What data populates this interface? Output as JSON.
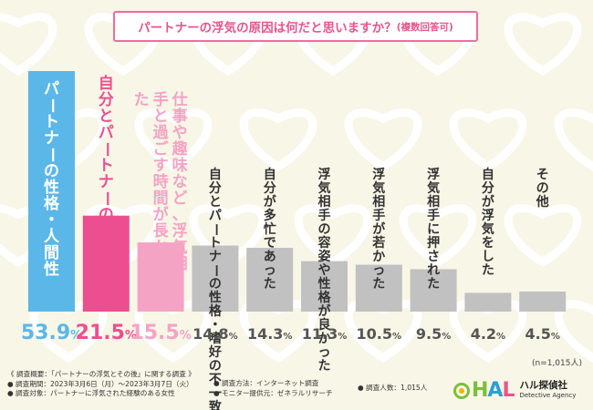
{
  "title": {
    "main": "パートナーの浮気の原因は何だと思いますか？",
    "suffix": "(複数回答可)"
  },
  "chart_data": {
    "type": "bar",
    "categories": [
      "パートナーの性格・人間性",
      "自分とパートナーの関係の悪化",
      "仕事や趣味など、浮気相手と過ごす時間が長かった",
      "自分とパートナーの性格・嗜好の不一致",
      "自分が多忙であった",
      "浮気相手の容姿や性格が良かった",
      "浮気相手が若かった",
      "浮気相手に押された",
      "自分が浮気をした",
      "その他"
    ],
    "values": [
      53.9,
      21.5,
      15.5,
      14.8,
      14.3,
      11.3,
      10.5,
      9.5,
      4.2,
      4.5
    ],
    "value_labels": [
      "53.9%",
      "21.5%",
      "15.5%",
      "14.8%",
      "14.3%",
      "11.3%",
      "10.5%",
      "9.5%",
      "4.2%",
      "4.5%"
    ],
    "n_label": "(n=1,015人)"
  },
  "colors": {
    "first": "#5bb7e8",
    "second": "#ec4f8f",
    "third": "#f5a3c4",
    "others": "#c1c1c1",
    "title": "#e8548c",
    "background": "#f8f6e7"
  },
  "footer": {
    "col1": [
      "《 調査概要：「パートナーの浮気とその後」に関する調査 》",
      "● 調査期間：2023年3月6日（月）〜2023年3月7日（火）",
      "● 調査対象：パートナーに浮気された経験のある女性"
    ],
    "col2": [
      "● 調査方法：インターネット調査",
      "● モニター提供元：ゼネラルリサーチ"
    ],
    "col3": [
      "● 調査人数：1,015人"
    ]
  },
  "logo": {
    "mark": "HAL",
    "name_jp": "ハル探偵社",
    "name_en": "Detective Agency"
  }
}
